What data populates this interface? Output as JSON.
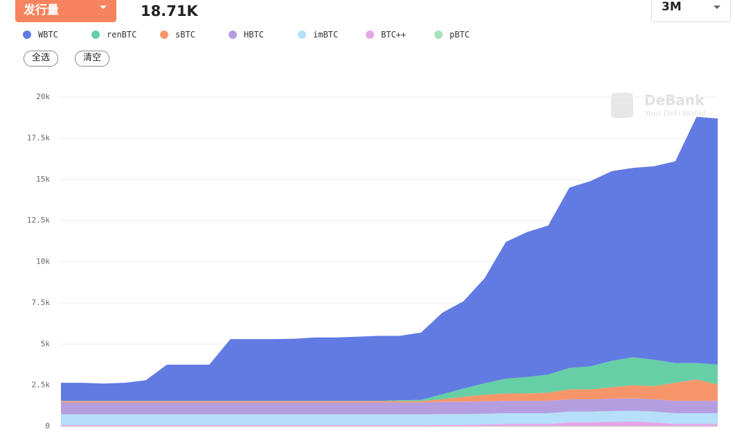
{
  "header": {
    "metric": "发行量",
    "total": "18.71K",
    "range": "3M",
    "select_all": "全选",
    "clear": "清空",
    "watermark": "DeBank",
    "watermark_sub": "Your DeFi Wallet"
  },
  "chart_data": {
    "type": "area",
    "stacked": true,
    "categories": [
      null,
      null,
      null,
      null,
      null,
      null,
      null,
      null,
      null,
      null,
      null,
      null,
      null,
      null,
      null,
      null,
      null,
      null,
      null,
      null,
      null,
      null,
      null,
      null,
      null,
      null,
      null,
      null,
      null,
      null,
      null,
      null
    ],
    "series": [
      {
        "name": "WBTC",
        "color": "#627be2",
        "values": [
          1100,
          1100,
          1050,
          1100,
          1250,
          2200,
          2200,
          2200,
          3750,
          3750,
          3750,
          3770,
          3850,
          3850,
          3900,
          3950,
          3910,
          4090,
          4950,
          5300,
          6380,
          8300,
          8800,
          9050,
          10950,
          11250,
          11520,
          11500,
          11750,
          12250,
          14950,
          14950
        ]
      },
      {
        "name": "renBTC",
        "color": "#66cfa6",
        "values": [
          20,
          20,
          20,
          20,
          20,
          20,
          20,
          20,
          20,
          20,
          20,
          20,
          20,
          20,
          20,
          20,
          60,
          80,
          300,
          500,
          700,
          900,
          1000,
          1100,
          1300,
          1400,
          1600,
          1700,
          1600,
          1200,
          1000,
          1200
        ]
      },
      {
        "name": "sBTC",
        "color": "#f7956a",
        "values": [
          80,
          80,
          80,
          80,
          80,
          80,
          80,
          80,
          80,
          80,
          80,
          80,
          80,
          80,
          80,
          80,
          80,
          80,
          150,
          300,
          400,
          450,
          450,
          500,
          600,
          600,
          700,
          800,
          800,
          1100,
          1300,
          1000
        ]
      },
      {
        "name": "HBTC",
        "color": "#b59ee0",
        "values": [
          720,
          720,
          720,
          720,
          720,
          720,
          720,
          720,
          720,
          720,
          720,
          720,
          720,
          720,
          720,
          720,
          720,
          720,
          750,
          750,
          750,
          750,
          750,
          750,
          750,
          750,
          750,
          750,
          750,
          750,
          750,
          750
        ]
      },
      {
        "name": "imBTC",
        "color": "#b6dffa",
        "values": [
          650,
          650,
          650,
          650,
          650,
          650,
          650,
          650,
          650,
          650,
          650,
          650,
          650,
          650,
          650,
          650,
          650,
          650,
          650,
          650,
          650,
          650,
          650,
          650,
          650,
          650,
          650,
          650,
          650,
          650,
          650,
          650
        ]
      },
      {
        "name": "BTC++",
        "color": "#e4a6e6",
        "values": [
          80,
          80,
          80,
          80,
          80,
          80,
          80,
          80,
          80,
          80,
          80,
          80,
          80,
          80,
          80,
          80,
          80,
          80,
          100,
          100,
          120,
          150,
          150,
          150,
          250,
          250,
          280,
          300,
          250,
          150,
          150,
          150
        ]
      },
      {
        "name": "pBTC",
        "color": "#a6e2b8",
        "values": [
          0,
          0,
          0,
          0,
          0,
          0,
          0,
          0,
          0,
          0,
          0,
          0,
          0,
          0,
          0,
          0,
          0,
          0,
          0,
          0,
          0,
          0,
          0,
          0,
          0,
          0,
          0,
          0,
          0,
          0,
          0,
          0
        ]
      }
    ],
    "ylim": [
      0,
      20000
    ],
    "yticks": [
      0,
      {
        "value": 2500,
        "label": "2.5k"
      },
      {
        "value": 5000,
        "label": "5k"
      },
      {
        "value": 7500,
        "label": "7.5k"
      },
      {
        "value": 10000,
        "label": "10k"
      },
      {
        "value": 12500,
        "label": "12.5k"
      },
      {
        "value": 15000,
        "label": "15k"
      },
      {
        "value": 17500,
        "label": "17.5k"
      },
      {
        "value": 20000,
        "label": "20k"
      }
    ],
    "grid": true
  }
}
